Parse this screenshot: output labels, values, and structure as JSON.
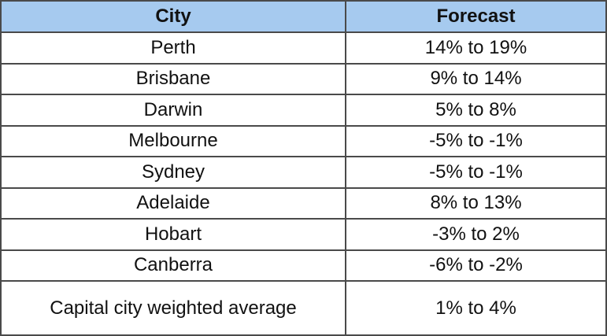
{
  "table": {
    "headers": [
      "City",
      "Forecast"
    ],
    "rows": [
      [
        "Perth",
        "14% to 19%"
      ],
      [
        "Brisbane",
        "9% to 14%"
      ],
      [
        "Darwin",
        "5% to 8%"
      ],
      [
        "Melbourne",
        "-5% to -1%"
      ],
      [
        "Sydney",
        "-5% to -1%"
      ],
      [
        "Adelaide",
        "8% to 13%"
      ],
      [
        "Hobart",
        "-3% to 2%"
      ],
      [
        "Canberra",
        "-6% to -2%"
      ],
      [
        "Capital city weighted average",
        "1% to 4%"
      ]
    ],
    "header_color": "#a6caef"
  }
}
